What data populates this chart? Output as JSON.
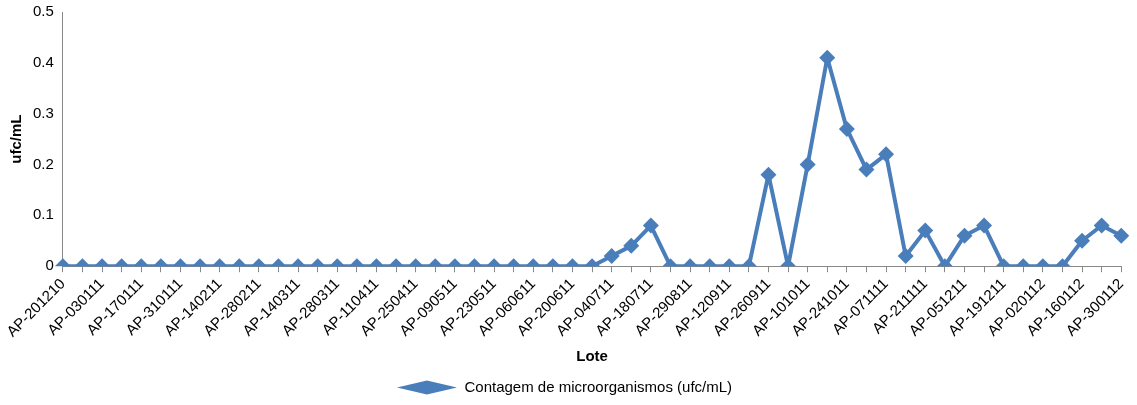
{
  "chart_data": {
    "type": "line",
    "xlabel": "Lote",
    "ylabel": "ufc/mL",
    "categories": [
      "AP-201210",
      null,
      "AP-030111",
      null,
      "AP-170111",
      null,
      "AP-310111",
      null,
      "AP-140211",
      null,
      "AP-280211",
      null,
      "AP-140311",
      null,
      "AP-280311",
      null,
      "AP-110411",
      null,
      "AP-250411",
      null,
      "AP-090511",
      null,
      "AP-230511",
      null,
      "AP-060611",
      null,
      "AP-200611",
      null,
      "AP-040711",
      null,
      "AP-180711",
      null,
      "AP-290811",
      null,
      "AP-120911",
      null,
      "AP-260911",
      null,
      "AP-101011",
      null,
      "AP-241011",
      null,
      "AP-071111",
      null,
      "AP-211111",
      null,
      "AP-051211",
      null,
      "AP-191211",
      null,
      "AP-020112",
      null,
      "AP-160112",
      null,
      "AP-300112"
    ],
    "series": [
      {
        "name": "Contagem de microorganismos (ufc/mL)",
        "color": "#4a7ebb",
        "values": [
          0,
          0,
          0,
          0,
          0,
          0,
          0,
          0,
          0,
          0,
          0,
          0,
          0,
          0,
          0,
          0,
          0,
          0,
          0,
          0,
          0,
          0,
          0,
          0,
          0,
          0,
          0,
          0,
          0.02,
          0.04,
          0.08,
          0,
          0,
          0,
          0,
          0,
          0.18,
          0,
          0.2,
          0.41,
          0.27,
          0.19,
          0.22,
          0.02,
          0.07,
          0,
          0.06,
          0.08,
          0,
          0,
          0,
          0,
          0.05,
          0.08,
          0.06
        ]
      }
    ],
    "ylim": [
      0,
      0.5
    ],
    "yticks": [
      0,
      0.1,
      0.2,
      0.3,
      0.4,
      0.5
    ],
    "grid": false,
    "legend": "bottom",
    "marker": "diamond",
    "line_style": "solid"
  }
}
